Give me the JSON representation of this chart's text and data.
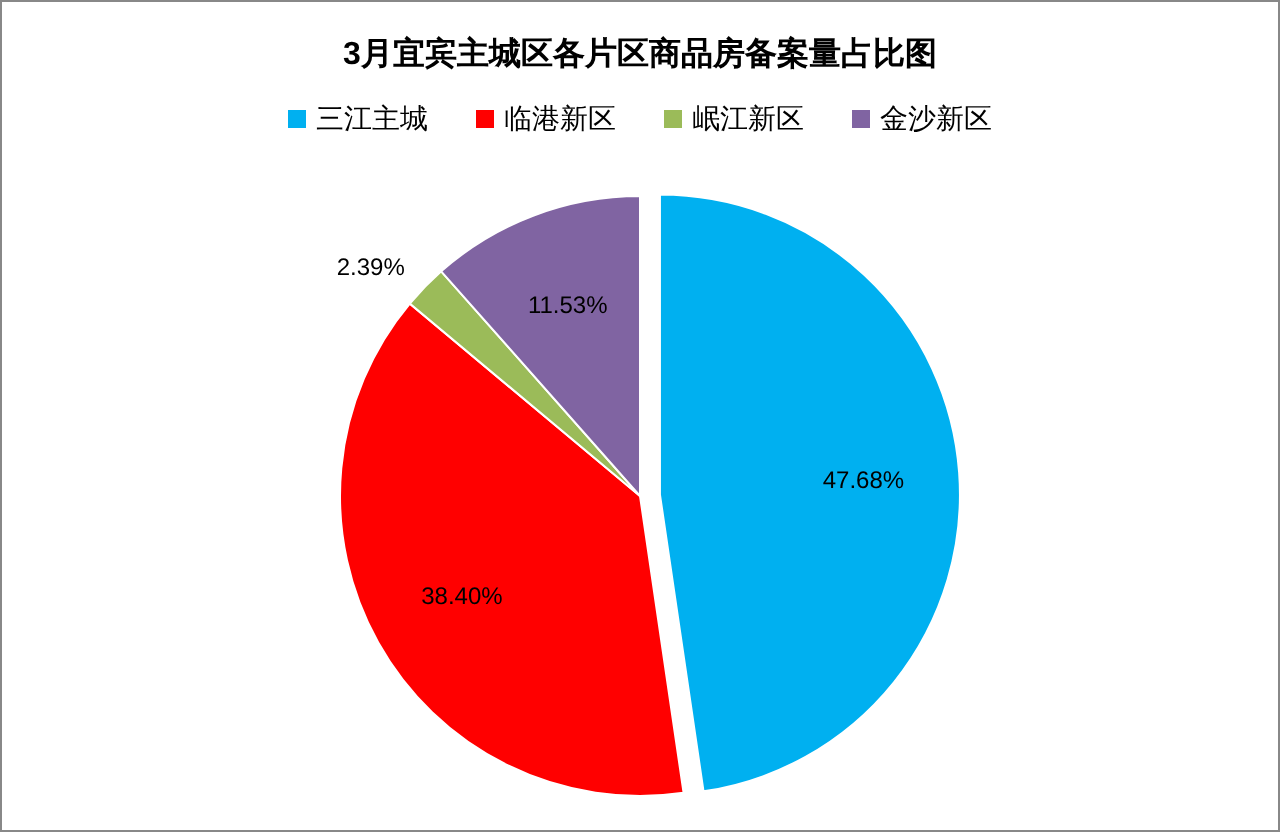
{
  "chart_data": {
    "type": "pie",
    "title": "3月宜宾主城区各片区商品房备案量占比图",
    "categories": [
      "三江主城",
      "临港新区",
      "岷江新区",
      "金沙新区"
    ],
    "values": [
      47.68,
      38.4,
      2.39,
      11.53
    ],
    "colors": [
      "#00b0f0",
      "#ff0000",
      "#9bbb59",
      "#8064a2"
    ],
    "value_labels": [
      "47.68%",
      "38.40%",
      "2.39%",
      "11.53%"
    ],
    "legend": "top"
  }
}
